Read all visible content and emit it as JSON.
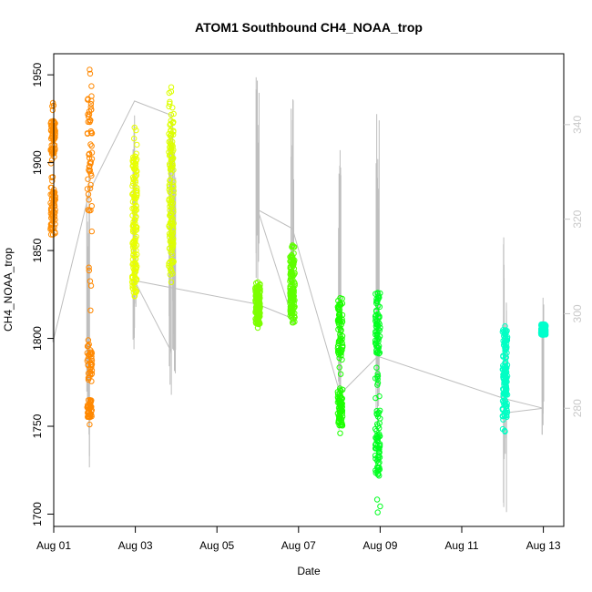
{
  "chart_data": {
    "type": "scatter",
    "title": "ATOM1 Southbound CH4_NOAA_trop",
    "xlabel": "Date",
    "ylabel": "CH4_NOAA_trop",
    "xlim": [
      0,
      12.5
    ],
    "ylim": [
      1693,
      1962
    ],
    "right_ylim": [
      255,
      355
    ],
    "x_ticks": [
      {
        "value": 0,
        "label": "Aug 01"
      },
      {
        "value": 2,
        "label": "Aug 03"
      },
      {
        "value": 4,
        "label": "Aug 05"
      },
      {
        "value": 6,
        "label": "Aug 07"
      },
      {
        "value": 8,
        "label": "Aug 09"
      },
      {
        "value": 10,
        "label": "Aug 11"
      },
      {
        "value": 12,
        "label": "Aug 13"
      }
    ],
    "y_ticks": [
      1700,
      1750,
      1800,
      1850,
      1900,
      1950
    ],
    "right_y_ticks": [
      280,
      300,
      320,
      340
    ],
    "secondary_series_color": "#bebebe",
    "segments": [
      {
        "x": -0.02,
        "y_min": 1859,
        "y_max": 1934,
        "color": "#ff8c00",
        "band": [
          [
            1862,
            1886
          ],
          [
            1905,
            1925
          ]
        ]
      },
      {
        "x": 0.88,
        "y_min": 1751,
        "y_max": 1953,
        "color": "#ff8800",
        "band": [
          [
            1870,
            1940
          ],
          [
            1755,
            1765
          ],
          [
            1775,
            1800
          ]
        ]
      },
      {
        "x": 1.98,
        "y_min": 1824,
        "y_max": 1920,
        "color": "#e8ff00",
        "band": [
          [
            1826,
            1905
          ]
        ]
      },
      {
        "x": 2.88,
        "y_min": 1832,
        "y_max": 1943,
        "color": "#ddff00",
        "band": [
          [
            1836,
            1935
          ]
        ]
      },
      {
        "x": 5.0,
        "y_min": 1806,
        "y_max": 1832,
        "color": "#7cff00",
        "band": [
          [
            1808,
            1830
          ]
        ]
      },
      {
        "x": 5.85,
        "y_min": 1809,
        "y_max": 1853,
        "color": "#5eff00",
        "band": [
          [
            1812,
            1848
          ]
        ]
      },
      {
        "x": 7.02,
        "y_min": 1746,
        "y_max": 1823,
        "color": "#1cff00",
        "band": [
          [
            1790,
            1820
          ],
          [
            1750,
            1770
          ]
        ]
      },
      {
        "x": 7.94,
        "y_min": 1701,
        "y_max": 1826,
        "color": "#00ff20",
        "band": [
          [
            1790,
            1826
          ],
          [
            1720,
            1760
          ]
        ]
      },
      {
        "x": 11.06,
        "y_min": 1747,
        "y_max": 1807,
        "color": "#00ffc4",
        "band": [
          [
            1755,
            1805
          ]
        ]
      },
      {
        "x": 12.0,
        "y_min": 1802,
        "y_max": 1808,
        "color": "#00ffcc",
        "band": [
          [
            1802,
            1808
          ]
        ]
      }
    ],
    "secondary_series": [
      {
        "x": -0.02,
        "y": 327
      },
      {
        "x": -0.02,
        "y": 294
      },
      {
        "x": 0.88,
        "y": 326
      },
      {
        "x": 1.98,
        "y": 345
      },
      {
        "x": 2.88,
        "y": 342
      },
      {
        "x": 2.88,
        "y": 292
      },
      {
        "x": 1.98,
        "y": 307
      },
      {
        "x": 5.0,
        "y": 302
      },
      {
        "x": 5.85,
        "y": 299
      },
      {
        "x": 5.0,
        "y": 322
      },
      {
        "x": 5.85,
        "y": 318
      },
      {
        "x": 7.02,
        "y": 283
      },
      {
        "x": 7.94,
        "y": 291
      },
      {
        "x": 11.06,
        "y": 282
      },
      {
        "x": 12.0,
        "y": 280
      },
      {
        "x": 11.06,
        "y": 279
      }
    ],
    "secondary_spikes": [
      {
        "x": 0.85,
        "y_min": 1720,
        "y_max": 1900
      },
      {
        "x": 1.98,
        "y_min": 1787,
        "y_max": 1937
      },
      {
        "x": 2.85,
        "y_min": 1765,
        "y_max": 1940
      },
      {
        "x": 2.95,
        "y_min": 1775,
        "y_max": 1930
      },
      {
        "x": 5.0,
        "y_min": 1825,
        "y_max": 1952
      },
      {
        "x": 5.85,
        "y_min": 1800,
        "y_max": 1937
      },
      {
        "x": 7.0,
        "y_min": 1735,
        "y_max": 1920
      },
      {
        "x": 7.94,
        "y_min": 1740,
        "y_max": 1937
      },
      {
        "x": 11.06,
        "y_min": 1700,
        "y_max": 1858
      },
      {
        "x": 12.0,
        "y_min": 1740,
        "y_max": 1825
      }
    ]
  }
}
